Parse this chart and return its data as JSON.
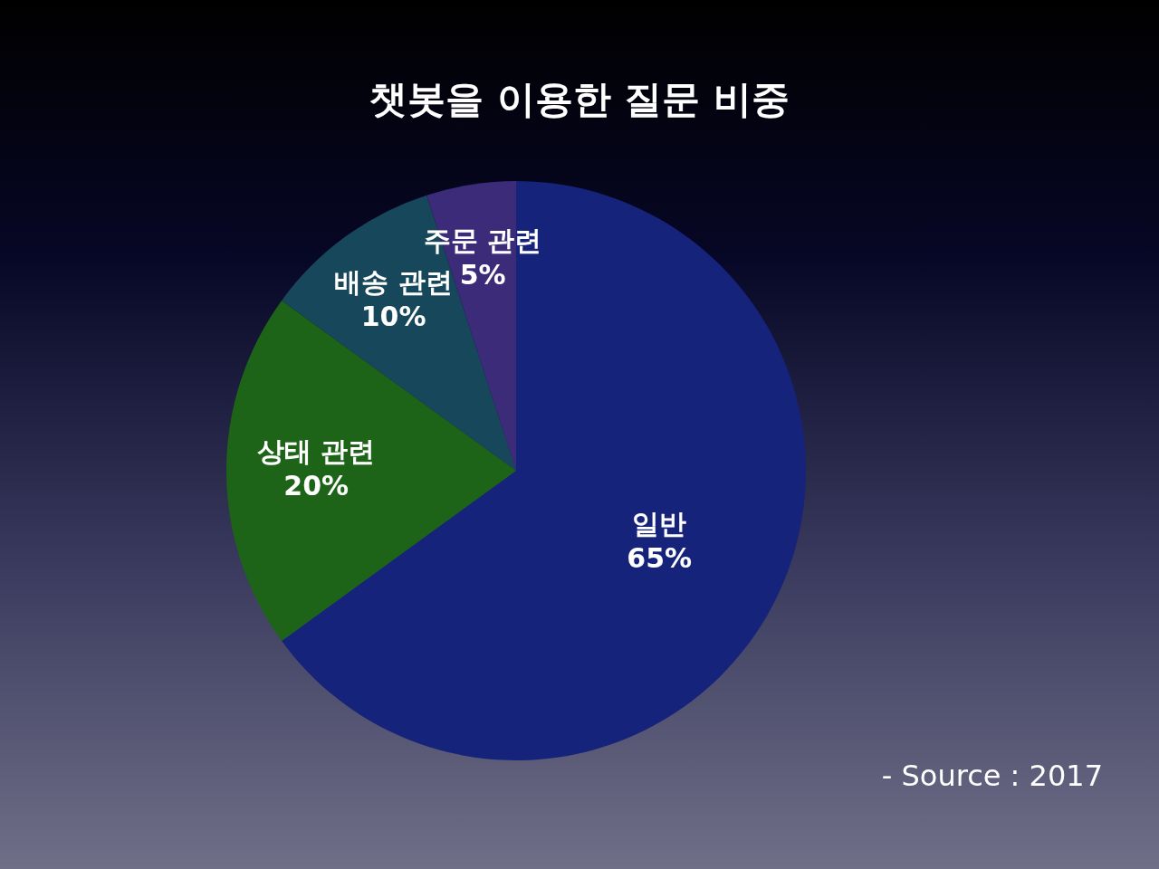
{
  "chart_data": {
    "type": "pie",
    "title": "챗봇을 이용한 질문 비중",
    "categories": [
      "일반",
      "상태 관련",
      "배송 관련",
      "주문 관련"
    ],
    "values": [
      65,
      20,
      10,
      5
    ],
    "value_labels": [
      "65%",
      "20%",
      "10%",
      "5%"
    ],
    "colors": [
      "#15237a",
      "#1e6418",
      "#17475a",
      "#3b2b78"
    ],
    "legend": false,
    "annotations": [
      "- Source : 2017"
    ]
  }
}
